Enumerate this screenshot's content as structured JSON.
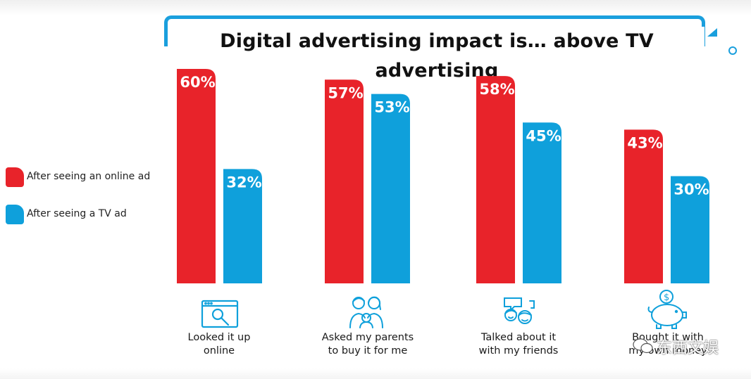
{
  "chart_data": {
    "type": "bar",
    "title": "Digital advertising impact is… above TV advertising",
    "categories": [
      "Looked it up\nonline",
      "Asked my parents\nto buy it for me",
      "Talked about it\nwith my friends",
      "Bought it with\nmy own money"
    ],
    "series": [
      {
        "name": "After seeing an online ad",
        "values": [
          60,
          57,
          58,
          43
        ],
        "labels": [
          "60%",
          "57%",
          "58%",
          "43%"
        ],
        "color": "#e8232a"
      },
      {
        "name": "After seeing a TV ad",
        "values": [
          32,
          53,
          45,
          30
        ],
        "labels": [
          "32%",
          "53%",
          "45%",
          "30%"
        ],
        "color": "#0fa0db"
      }
    ],
    "ylim": [
      0,
      60
    ],
    "xlabel": "",
    "ylabel": "",
    "legend": "left",
    "grid": false
  },
  "icons": [
    "browser-search-icon",
    "family-icon",
    "friends-talking-icon",
    "piggy-bank-icon"
  ],
  "icon_color": "#0fa0db",
  "watermark": {
    "text": "东西文娱",
    "icon": "wechat-icon"
  }
}
